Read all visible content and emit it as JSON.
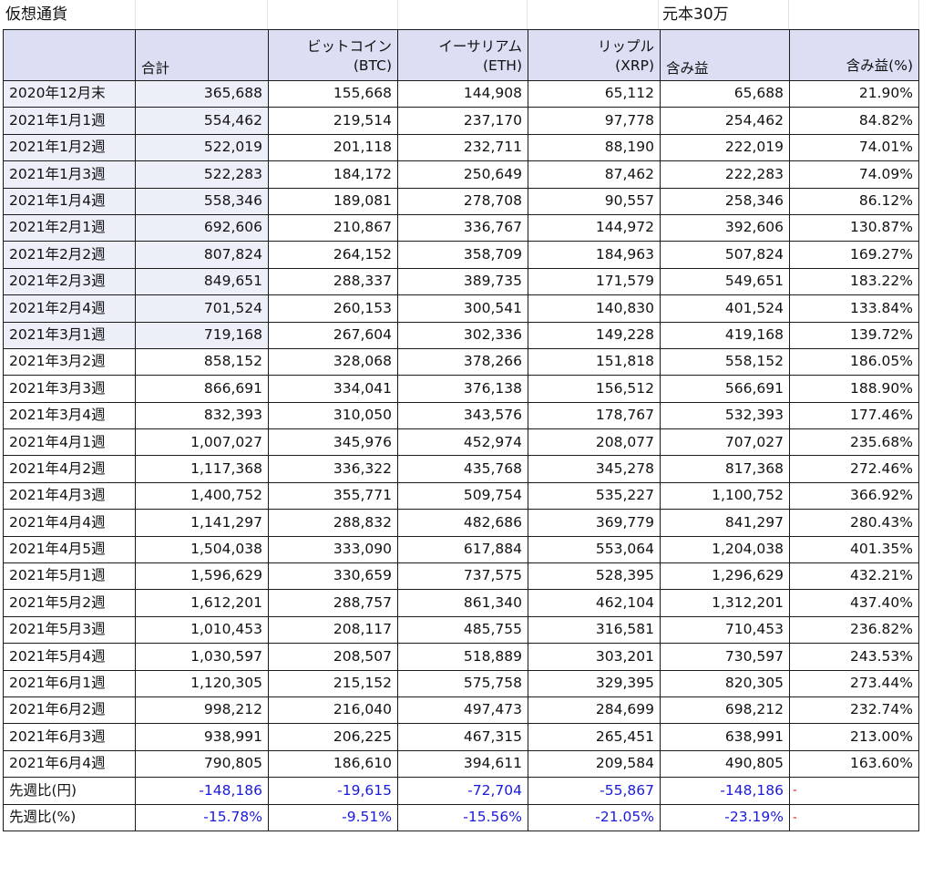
{
  "sheet": {
    "title": "仮想通貨",
    "capital_note": "元本30万"
  },
  "headers": {
    "total": "合計",
    "btc_name": "ビットコイン",
    "btc_code": "(BTC)",
    "eth_name": "イーサリアム",
    "eth_code": "(ETH)",
    "xrp_name": "リップル",
    "xrp_code": "(XRP)",
    "gain": "含み益",
    "gain_pct": "含み益(%)"
  },
  "rows": [
    {
      "label": "2020年12月末",
      "total": "365,688",
      "btc": "155,668",
      "eth": "144,908",
      "xrp": "65,112",
      "gain": "65,688",
      "pct": "21.90%"
    },
    {
      "label": "2021年1月1週",
      "total": "554,462",
      "btc": "219,514",
      "eth": "237,170",
      "xrp": "97,778",
      "gain": "254,462",
      "pct": "84.82%"
    },
    {
      "label": "2021年1月2週",
      "total": "522,019",
      "btc": "201,118",
      "eth": "232,711",
      "xrp": "88,190",
      "gain": "222,019",
      "pct": "74.01%"
    },
    {
      "label": "2021年1月3週",
      "total": "522,283",
      "btc": "184,172",
      "eth": "250,649",
      "xrp": "87,462",
      "gain": "222,283",
      "pct": "74.09%"
    },
    {
      "label": "2021年1月4週",
      "total": "558,346",
      "btc": "189,081",
      "eth": "278,708",
      "xrp": "90,557",
      "gain": "258,346",
      "pct": "86.12%"
    },
    {
      "label": "2021年2月1週",
      "total": "692,606",
      "btc": "210,867",
      "eth": "336,767",
      "xrp": "144,972",
      "gain": "392,606",
      "pct": "130.87%"
    },
    {
      "label": "2021年2月2週",
      "total": "807,824",
      "btc": "264,152",
      "eth": "358,709",
      "xrp": "184,963",
      "gain": "507,824",
      "pct": "169.27%"
    },
    {
      "label": "2021年2月3週",
      "total": "849,651",
      "btc": "288,337",
      "eth": "389,735",
      "xrp": "171,579",
      "gain": "549,651",
      "pct": "183.22%"
    },
    {
      "label": "2021年2月4週",
      "total": "701,524",
      "btc": "260,153",
      "eth": "300,541",
      "xrp": "140,830",
      "gain": "401,524",
      "pct": "133.84%"
    },
    {
      "label": "2021年3月1週",
      "total": "719,168",
      "btc": "267,604",
      "eth": "302,336",
      "xrp": "149,228",
      "gain": "419,168",
      "pct": "139.72%"
    },
    {
      "label": "2021年3月2週",
      "total": "858,152",
      "btc": "328,068",
      "eth": "378,266",
      "xrp": "151,818",
      "gain": "558,152",
      "pct": "186.05%"
    },
    {
      "label": "2021年3月3週",
      "total": "866,691",
      "btc": "334,041",
      "eth": "376,138",
      "xrp": "156,512",
      "gain": "566,691",
      "pct": "188.90%"
    },
    {
      "label": "2021年3月4週",
      "total": "832,393",
      "btc": "310,050",
      "eth": "343,576",
      "xrp": "178,767",
      "gain": "532,393",
      "pct": "177.46%"
    },
    {
      "label": "2021年4月1週",
      "total": "1,007,027",
      "btc": "345,976",
      "eth": "452,974",
      "xrp": "208,077",
      "gain": "707,027",
      "pct": "235.68%"
    },
    {
      "label": "2021年4月2週",
      "total": "1,117,368",
      "btc": "336,322",
      "eth": "435,768",
      "xrp": "345,278",
      "gain": "817,368",
      "pct": "272.46%"
    },
    {
      "label": "2021年4月3週",
      "total": "1,400,752",
      "btc": "355,771",
      "eth": "509,754",
      "xrp": "535,227",
      "gain": "1,100,752",
      "pct": "366.92%"
    },
    {
      "label": "2021年4月4週",
      "total": "1,141,297",
      "btc": "288,832",
      "eth": "482,686",
      "xrp": "369,779",
      "gain": "841,297",
      "pct": "280.43%"
    },
    {
      "label": "2021年4月5週",
      "total": "1,504,038",
      "btc": "333,090",
      "eth": "617,884",
      "xrp": "553,064",
      "gain": "1,204,038",
      "pct": "401.35%"
    },
    {
      "label": "2021年5月1週",
      "total": "1,596,629",
      "btc": "330,659",
      "eth": "737,575",
      "xrp": "528,395",
      "gain": "1,296,629",
      "pct": "432.21%"
    },
    {
      "label": "2021年5月2週",
      "total": "1,612,201",
      "btc": "288,757",
      "eth": "861,340",
      "xrp": "462,104",
      "gain": "1,312,201",
      "pct": "437.40%"
    },
    {
      "label": "2021年5月3週",
      "total": "1,010,453",
      "btc": "208,117",
      "eth": "485,755",
      "xrp": "316,581",
      "gain": "710,453",
      "pct": "236.82%"
    },
    {
      "label": "2021年5月4週",
      "total": "1,030,597",
      "btc": "208,507",
      "eth": "518,889",
      "xrp": "303,201",
      "gain": "730,597",
      "pct": "243.53%"
    },
    {
      "label": "2021年6月1週",
      "total": "1,120,305",
      "btc": "215,152",
      "eth": "575,758",
      "xrp": "329,395",
      "gain": "820,305",
      "pct": "273.44%"
    },
    {
      "label": "2021年6月2週",
      "total": "998,212",
      "btc": "216,040",
      "eth": "497,473",
      "xrp": "284,699",
      "gain": "698,212",
      "pct": "232.74%"
    },
    {
      "label": "2021年6月3週",
      "total": "938,991",
      "btc": "206,225",
      "eth": "467,315",
      "xrp": "265,451",
      "gain": "638,991",
      "pct": "213.00%"
    },
    {
      "label": "2021年6月4週",
      "total": "790,805",
      "btc": "186,610",
      "eth": "394,611",
      "xrp": "209,584",
      "gain": "490,805",
      "pct": "163.60%"
    }
  ],
  "summary": [
    {
      "label": "先週比(円)",
      "total": "-148,186",
      "btc": "-19,615",
      "eth": "-72,704",
      "xrp": "-55,867",
      "gain": "-148,186",
      "pct_mark": "-"
    },
    {
      "label": "先週比(%)",
      "total": "-15.78%",
      "btc": "-9.51%",
      "eth": "-15.56%",
      "xrp": "-21.05%",
      "gain": "-23.19%",
      "pct_mark": "-"
    }
  ],
  "colors": {
    "header_fill": "#dcdff4",
    "shaded_fill": "#eceef8",
    "negative_text": "#1a1adc",
    "error_mark": "#dd1111"
  }
}
